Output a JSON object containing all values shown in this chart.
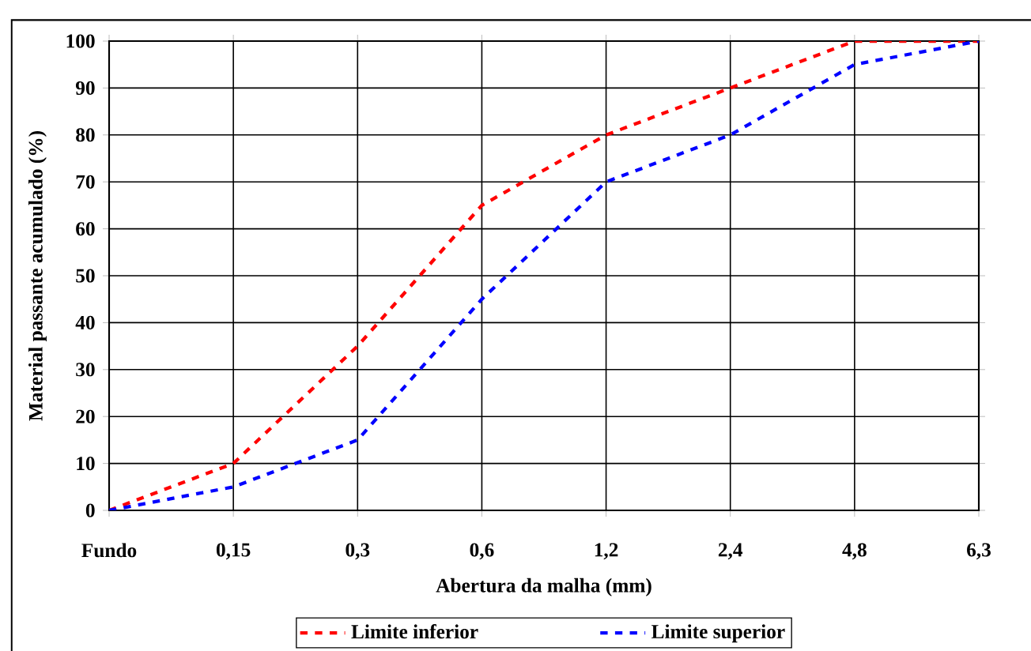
{
  "chart_data": {
    "type": "line",
    "xlabel": "Abertura da malha (mm)",
    "ylabel": "Material passante acumulado (%)",
    "categories": [
      "Fundo",
      "0,15",
      "0,3",
      "0,6",
      "1,2",
      "2,4",
      "4,8",
      "6,3"
    ],
    "series": [
      {
        "name": "Limite inferior",
        "color": "#ff0000",
        "values": [
          0,
          10,
          35,
          65,
          80,
          90,
          100,
          100
        ]
      },
      {
        "name": "Limite superior",
        "color": "#0000ff",
        "values": [
          0,
          5,
          15,
          45,
          70,
          80,
          95,
          100
        ]
      }
    ],
    "ylim": [
      0,
      100
    ],
    "yticks": [
      0,
      10,
      20,
      30,
      40,
      50,
      60,
      70,
      80,
      90,
      100
    ],
    "grid": true,
    "legend": "bottom",
    "line_style": "dashed"
  }
}
